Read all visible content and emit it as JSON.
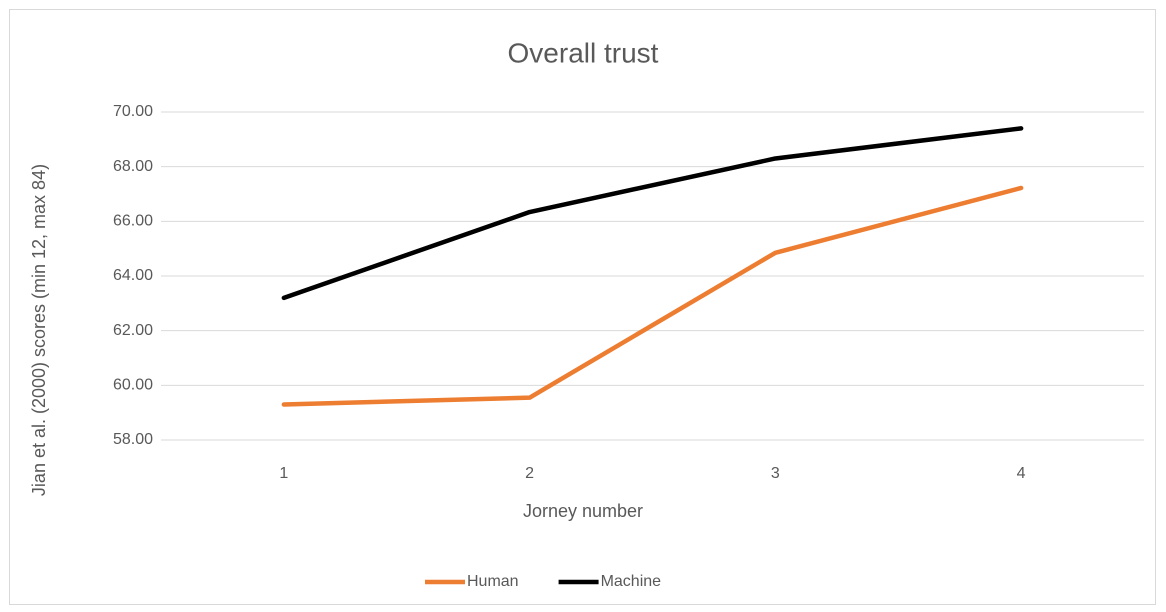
{
  "chart_data": {
    "type": "line",
    "title": "Overall trust",
    "xlabel": "Jorney number",
    "ylabel": "Jian et al. (2000) scores (min 12, max 84)",
    "categories": [
      "1",
      "2",
      "3",
      "4"
    ],
    "series": [
      {
        "name": "Human",
        "color": "#ed7d31",
        "values": [
          59.3,
          59.55,
          64.85,
          67.22
        ]
      },
      {
        "name": "Machine",
        "color": "#000000",
        "values": [
          63.2,
          66.34,
          68.3,
          69.4
        ]
      }
    ],
    "ylim": [
      58,
      70
    ],
    "yticks": [
      {
        "value": 58,
        "label": "58.00"
      },
      {
        "value": 60,
        "label": "60.00"
      },
      {
        "value": 62,
        "label": "62.00"
      },
      {
        "value": 64,
        "label": "64.00"
      },
      {
        "value": 66,
        "label": "66.00"
      },
      {
        "value": 68,
        "label": "68.00"
      },
      {
        "value": 70,
        "label": "70.00"
      }
    ],
    "grid": true,
    "legend": "bottom"
  }
}
